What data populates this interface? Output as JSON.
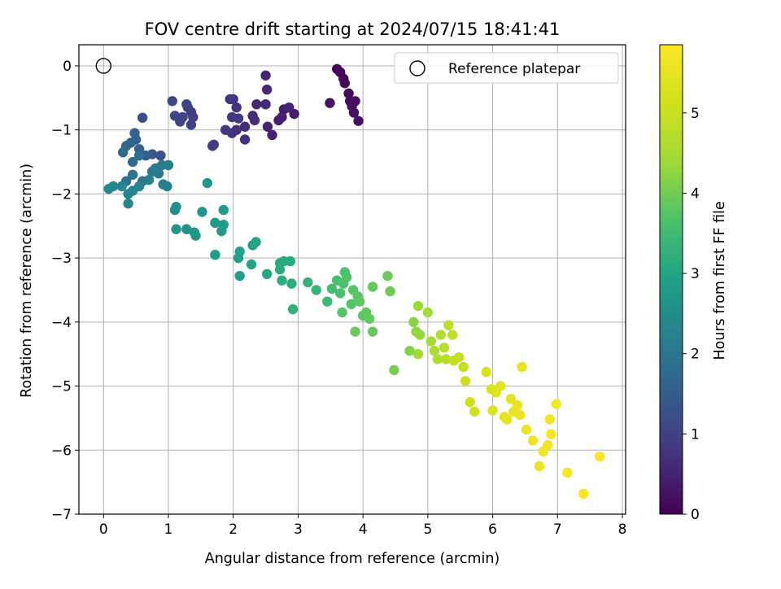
{
  "chart_data": {
    "type": "scatter",
    "title": "FOV centre drift starting at 2024/07/15 18:41:41",
    "xlabel": "Angular distance from reference (arcmin)",
    "ylabel": "Rotation from reference (arcmin)",
    "colorbar_label": "Hours from first FF file",
    "xlim": [
      -0.38,
      8.05
    ],
    "ylim": [
      -7.0,
      0.33
    ],
    "clim": [
      0,
      5.85
    ],
    "xticks": [
      "0",
      "1",
      "2",
      "3",
      "4",
      "5",
      "6",
      "7",
      "8"
    ],
    "yticks": [
      "0",
      "−1",
      "−2",
      "−3",
      "−4",
      "−5",
      "−6",
      "−7"
    ],
    "cbar_ticks": [
      "0",
      "1",
      "2",
      "3",
      "4",
      "5"
    ],
    "grid": true,
    "legend": {
      "position": "top-right",
      "entries": [
        "Reference platepar"
      ]
    },
    "reference": {
      "label": "Reference platepar",
      "x": 0,
      "y": 0,
      "marker": "open-circle"
    },
    "colormap": "viridis",
    "points": [
      [
        3.6,
        -0.05,
        0.05
      ],
      [
        3.65,
        -0.1,
        0.08
      ],
      [
        3.7,
        -0.2,
        0.1
      ],
      [
        3.72,
        -0.27,
        0.12
      ],
      [
        3.78,
        -0.43,
        0.15
      ],
      [
        3.8,
        -0.55,
        0.17
      ],
      [
        3.88,
        -0.55,
        0.19
      ],
      [
        3.83,
        -0.63,
        0.2
      ],
      [
        3.86,
        -0.73,
        0.22
      ],
      [
        3.93,
        -0.86,
        0.25
      ],
      [
        3.49,
        -0.58,
        0.3
      ],
      [
        2.94,
        -0.75,
        0.4
      ],
      [
        2.78,
        -0.68,
        0.42
      ],
      [
        2.7,
        -0.85,
        0.45
      ],
      [
        2.75,
        -0.8,
        0.47
      ],
      [
        2.86,
        -0.65,
        0.48
      ],
      [
        2.6,
        -1.08,
        0.5
      ],
      [
        2.53,
        -0.95,
        0.52
      ],
      [
        2.5,
        -0.15,
        0.55
      ],
      [
        2.52,
        -0.37,
        0.56
      ],
      [
        2.5,
        -0.6,
        0.58
      ],
      [
        2.36,
        -0.6,
        0.6
      ],
      [
        2.3,
        -0.78,
        0.62
      ],
      [
        2.33,
        -0.85,
        0.64
      ],
      [
        2.18,
        -0.95,
        0.66
      ],
      [
        2.18,
        -1.15,
        0.68
      ],
      [
        2.05,
        -1.0,
        0.7
      ],
      [
        1.98,
        -1.05,
        0.72
      ],
      [
        2.05,
        -0.65,
        0.74
      ],
      [
        2.0,
        -0.52,
        0.76
      ],
      [
        1.95,
        -0.52,
        0.78
      ],
      [
        1.98,
        -0.8,
        0.8
      ],
      [
        2.08,
        -0.82,
        0.82
      ],
      [
        1.88,
        -1.0,
        0.84
      ],
      [
        1.7,
        -1.23,
        0.88
      ],
      [
        1.68,
        -1.25,
        0.9
      ],
      [
        1.35,
        -0.72,
        0.92
      ],
      [
        1.38,
        -0.8,
        0.95
      ],
      [
        1.3,
        -0.65,
        0.98
      ],
      [
        1.35,
        -0.92,
        1.0
      ],
      [
        1.22,
        -0.8,
        1.02
      ],
      [
        1.28,
        -0.6,
        1.05
      ],
      [
        1.1,
        -0.78,
        1.08
      ],
      [
        1.18,
        -0.87,
        1.1
      ],
      [
        1.06,
        -0.55,
        1.12
      ],
      [
        0.6,
        -0.81,
        1.2
      ],
      [
        0.88,
        -1.4,
        1.3
      ],
      [
        0.75,
        -1.38,
        1.4
      ],
      [
        0.65,
        -1.4,
        1.45
      ],
      [
        0.55,
        -1.3,
        1.5
      ],
      [
        0.5,
        -1.15,
        1.55
      ],
      [
        0.48,
        -1.05,
        1.6
      ],
      [
        0.42,
        -1.2,
        1.65
      ],
      [
        0.35,
        -1.25,
        1.7
      ],
      [
        0.3,
        -1.35,
        1.75
      ],
      [
        0.45,
        -1.5,
        1.8
      ],
      [
        0.55,
        -1.4,
        1.85
      ],
      [
        0.35,
        -1.8,
        1.9
      ],
      [
        0.45,
        -1.7,
        1.95
      ],
      [
        0.6,
        -1.8,
        2.0
      ],
      [
        0.85,
        -1.68,
        2.05
      ],
      [
        0.75,
        -1.65,
        2.08
      ],
      [
        0.8,
        -1.6,
        2.1
      ],
      [
        0.9,
        -1.55,
        2.12
      ],
      [
        1.0,
        -1.55,
        2.15
      ],
      [
        0.92,
        -1.85,
        2.18
      ],
      [
        0.98,
        -1.88,
        2.2
      ],
      [
        0.7,
        -1.78,
        2.22
      ],
      [
        0.55,
        -1.88,
        2.25
      ],
      [
        0.45,
        -1.95,
        2.28
      ],
      [
        0.38,
        -2.0,
        2.3
      ],
      [
        0.38,
        -2.15,
        2.32
      ],
      [
        0.28,
        -1.88,
        2.35
      ],
      [
        0.15,
        -1.88,
        2.38
      ],
      [
        0.08,
        -1.92,
        2.4
      ],
      [
        1.1,
        -2.25,
        2.5
      ],
      [
        1.12,
        -2.2,
        2.55
      ],
      [
        1.28,
        -2.55,
        2.6
      ],
      [
        1.12,
        -2.55,
        2.65
      ],
      [
        1.4,
        -2.6,
        2.68
      ],
      [
        1.42,
        -2.65,
        2.7
      ],
      [
        1.52,
        -2.28,
        2.72
      ],
      [
        1.6,
        -1.83,
        2.75
      ],
      [
        1.72,
        -2.45,
        2.78
      ],
      [
        1.85,
        -2.25,
        2.8
      ],
      [
        1.85,
        -2.48,
        2.82
      ],
      [
        1.82,
        -2.58,
        2.85
      ],
      [
        1.72,
        -2.95,
        2.88
      ],
      [
        2.1,
        -3.28,
        2.9
      ],
      [
        2.08,
        -3.0,
        2.92
      ],
      [
        2.1,
        -2.9,
        2.95
      ],
      [
        2.3,
        -2.8,
        2.98
      ],
      [
        2.35,
        -2.75,
        3.0
      ],
      [
        2.28,
        -3.1,
        3.02
      ],
      [
        2.52,
        -3.25,
        3.05
      ],
      [
        2.72,
        -3.08,
        3.08
      ],
      [
        2.78,
        -3.05,
        3.1
      ],
      [
        2.88,
        -3.05,
        3.12
      ],
      [
        2.72,
        -3.18,
        3.15
      ],
      [
        2.75,
        -3.35,
        3.18
      ],
      [
        2.9,
        -3.4,
        3.2
      ],
      [
        2.92,
        -3.8,
        3.25
      ],
      [
        3.15,
        -3.38,
        3.3
      ],
      [
        3.28,
        -3.5,
        3.35
      ],
      [
        3.45,
        -3.68,
        3.45
      ],
      [
        3.52,
        -3.48,
        3.55
      ],
      [
        3.6,
        -3.35,
        3.6
      ],
      [
        3.65,
        -3.55,
        3.62
      ],
      [
        3.7,
        -3.4,
        3.65
      ],
      [
        3.72,
        -3.22,
        3.68
      ],
      [
        3.75,
        -3.3,
        3.7
      ],
      [
        3.82,
        -3.72,
        3.72
      ],
      [
        3.68,
        -3.85,
        3.74
      ],
      [
        3.85,
        -3.5,
        3.76
      ],
      [
        3.92,
        -3.6,
        3.78
      ],
      [
        3.95,
        -3.68,
        3.8
      ],
      [
        4.0,
        -3.9,
        3.82
      ],
      [
        4.05,
        -3.85,
        3.84
      ],
      [
        4.1,
        -3.95,
        3.86
      ],
      [
        4.15,
        -3.45,
        3.88
      ],
      [
        4.15,
        -4.15,
        3.9
      ],
      [
        3.88,
        -4.15,
        3.92
      ],
      [
        4.38,
        -3.28,
        3.95
      ],
      [
        4.42,
        -3.52,
        3.98
      ],
      [
        4.48,
        -4.75,
        4.05
      ],
      [
        4.72,
        -4.45,
        4.15
      ],
      [
        4.78,
        -4.0,
        4.2
      ],
      [
        4.82,
        -4.15,
        4.25
      ],
      [
        4.88,
        -4.2,
        4.3
      ],
      [
        4.85,
        -3.75,
        4.35
      ],
      [
        4.85,
        -4.5,
        4.4
      ],
      [
        5.0,
        -3.85,
        4.45
      ],
      [
        5.05,
        -4.3,
        4.5
      ],
      [
        5.1,
        -4.45,
        4.55
      ],
      [
        5.15,
        -4.58,
        4.6
      ],
      [
        5.2,
        -4.2,
        4.65
      ],
      [
        5.25,
        -4.4,
        4.7
      ],
      [
        5.28,
        -4.58,
        4.75
      ],
      [
        5.32,
        -4.05,
        4.8
      ],
      [
        5.38,
        -4.2,
        4.85
      ],
      [
        5.4,
        -4.6,
        4.9
      ],
      [
        5.48,
        -4.55,
        4.95
      ],
      [
        5.55,
        -4.7,
        5.0
      ],
      [
        5.58,
        -4.92,
        5.05
      ],
      [
        5.65,
        -5.25,
        5.1
      ],
      [
        5.72,
        -5.4,
        5.15
      ],
      [
        5.9,
        -4.78,
        5.2
      ],
      [
        5.98,
        -5.05,
        5.25
      ],
      [
        6.0,
        -5.38,
        5.3
      ],
      [
        6.05,
        -5.1,
        5.35
      ],
      [
        6.12,
        -5.0,
        5.4
      ],
      [
        6.18,
        -5.48,
        5.42
      ],
      [
        6.22,
        -5.52,
        5.45
      ],
      [
        6.28,
        -5.2,
        5.48
      ],
      [
        6.32,
        -5.4,
        5.5
      ],
      [
        6.38,
        -5.3,
        5.52
      ],
      [
        6.42,
        -5.45,
        5.54
      ],
      [
        6.45,
        -4.7,
        5.5
      ],
      [
        6.52,
        -5.68,
        5.56
      ],
      [
        6.62,
        -5.85,
        5.58
      ],
      [
        6.72,
        -6.25,
        5.6
      ],
      [
        6.78,
        -6.02,
        5.62
      ],
      [
        6.85,
        -5.92,
        5.64
      ],
      [
        6.88,
        -5.52,
        5.66
      ],
      [
        6.9,
        -5.75,
        5.68
      ],
      [
        6.98,
        -5.28,
        5.7
      ],
      [
        7.15,
        -6.35,
        5.72
      ],
      [
        7.4,
        -6.68,
        5.8
      ],
      [
        7.65,
        -6.1,
        5.85
      ]
    ]
  }
}
